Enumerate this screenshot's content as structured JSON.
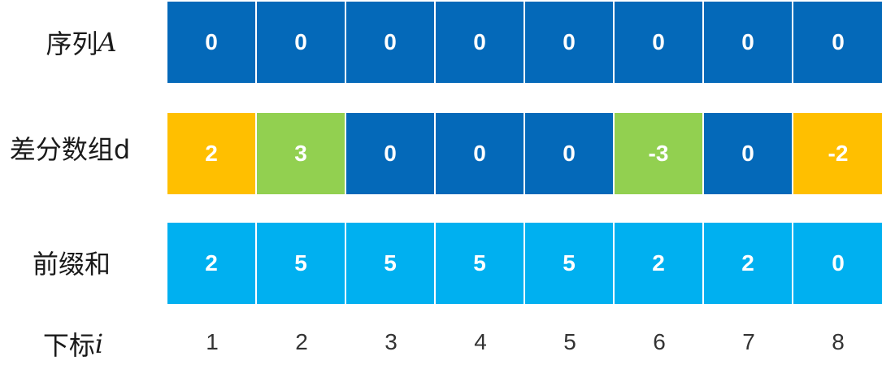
{
  "colors": {
    "blue": "#0469B9",
    "orange": "#FFBF00",
    "green": "#92D050",
    "light_blue": "#00B0F0"
  },
  "rows": {
    "sequence": {
      "label": "序列",
      "label_var": "A",
      "cells": [
        {
          "value": "0",
          "color": "blue"
        },
        {
          "value": "0",
          "color": "blue"
        },
        {
          "value": "0",
          "color": "blue"
        },
        {
          "value": "0",
          "color": "blue"
        },
        {
          "value": "0",
          "color": "blue"
        },
        {
          "value": "0",
          "color": "blue"
        },
        {
          "value": "0",
          "color": "blue"
        },
        {
          "value": "0",
          "color": "blue"
        }
      ]
    },
    "diff": {
      "label": "差分数组d",
      "cells": [
        {
          "value": "2",
          "color": "orange"
        },
        {
          "value": "3",
          "color": "green"
        },
        {
          "value": "0",
          "color": "blue"
        },
        {
          "value": "0",
          "color": "blue"
        },
        {
          "value": "0",
          "color": "blue"
        },
        {
          "value": "-3",
          "color": "green"
        },
        {
          "value": "0",
          "color": "blue"
        },
        {
          "value": "-2",
          "color": "orange"
        }
      ]
    },
    "prefix": {
      "label": "前缀和",
      "cells": [
        {
          "value": "2",
          "color": "light_blue"
        },
        {
          "value": "5",
          "color": "light_blue"
        },
        {
          "value": "5",
          "color": "light_blue"
        },
        {
          "value": "5",
          "color": "light_blue"
        },
        {
          "value": "5",
          "color": "light_blue"
        },
        {
          "value": "2",
          "color": "light_blue"
        },
        {
          "value": "2",
          "color": "light_blue"
        },
        {
          "value": "0",
          "color": "light_blue"
        }
      ]
    }
  },
  "index_row": {
    "label": "下标",
    "label_var": "i",
    "values": [
      "1",
      "2",
      "3",
      "4",
      "5",
      "6",
      "7",
      "8"
    ]
  }
}
